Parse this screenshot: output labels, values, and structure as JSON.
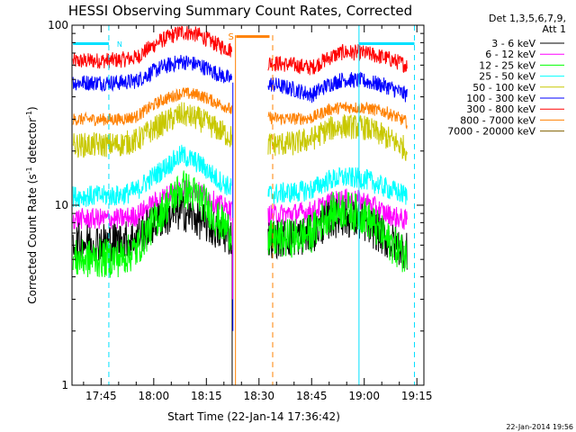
{
  "chart_data": {
    "type": "line",
    "title": "HESSI Observing Summary Count Rates, Corrected",
    "xlabel": "Start Time (22-Jan-14 17:36:42)",
    "ylabel_main": "Corrected Count Rate (s",
    "ylabel_sup1": "-1",
    "ylabel_mid": " detector",
    "ylabel_sup2": "-1",
    "ylabel_end": ")",
    "yscale": "log",
    "ylim": [
      1,
      100
    ],
    "xlim_minutes": [
      1056.7,
      1157.0
    ],
    "x_ticks": [
      {
        "t": 1065,
        "label": "17:45"
      },
      {
        "t": 1080,
        "label": "18:00"
      },
      {
        "t": 1095,
        "label": "18:15"
      },
      {
        "t": 1110,
        "label": "18:30"
      },
      {
        "t": 1125,
        "label": "18:45"
      },
      {
        "t": 1140,
        "label": "19:00"
      },
      {
        "t": 1155,
        "label": "19:15"
      }
    ],
    "y_ticks": [
      {
        "v": 1,
        "label": "1"
      },
      {
        "v": 10,
        "label": "10"
      },
      {
        "v": 100,
        "label": "100"
      }
    ],
    "legend_header": [
      "Det 1,3,5,6,7,9,",
      "Att 1"
    ],
    "legend_placement": "right",
    "series": [
      {
        "name": "3 - 6 keV",
        "color": "#000000",
        "values": [
          [
            1057,
            6.2
          ],
          [
            1070,
            6.3
          ],
          [
            1075,
            6.6
          ],
          [
            1082,
            8.4
          ],
          [
            1088,
            9.3
          ],
          [
            1093,
            8.3
          ],
          [
            1098,
            7.2
          ],
          [
            1101,
            6.8
          ],
          [
            1102.5,
            6.6
          ],
          [
            1112.5,
            6.5
          ],
          [
            1120,
            6.6
          ],
          [
            1125,
            6.9
          ],
          [
            1130,
            8.3
          ],
          [
            1134,
            8.6
          ],
          [
            1140,
            8.0
          ],
          [
            1146,
            6.5
          ],
          [
            1152,
            5.6
          ]
        ]
      },
      {
        "name": "6 - 12 keV",
        "color": "#ff00ff",
        "values": [
          [
            1057,
            8.4
          ],
          [
            1070,
            8.4
          ],
          [
            1075,
            8.7
          ],
          [
            1082,
            10.8
          ],
          [
            1088,
            12.5
          ],
          [
            1093,
            11.8
          ],
          [
            1098,
            10.2
          ],
          [
            1101,
            9.5
          ],
          [
            1102.5,
            9.2
          ],
          [
            1112.5,
            8.8
          ],
          [
            1120,
            9.0
          ],
          [
            1125,
            9.2
          ],
          [
            1130,
            10.3
          ],
          [
            1134,
            10.8
          ],
          [
            1140,
            10.5
          ],
          [
            1146,
            9.0
          ],
          [
            1152,
            8.2
          ]
        ]
      },
      {
        "name": "12 - 25 keV",
        "color": "#00ff00",
        "values": [
          [
            1057,
            5.0
          ],
          [
            1070,
            5.1
          ],
          [
            1075,
            5.6
          ],
          [
            1082,
            9.0
          ],
          [
            1088,
            12.5
          ],
          [
            1093,
            11.0
          ],
          [
            1098,
            8.3
          ],
          [
            1101,
            7.4
          ],
          [
            1102.5,
            7.0
          ],
          [
            1112.5,
            6.4
          ],
          [
            1120,
            6.6
          ],
          [
            1125,
            7.0
          ],
          [
            1130,
            9.0
          ],
          [
            1134,
            9.5
          ],
          [
            1140,
            8.8
          ],
          [
            1146,
            6.5
          ],
          [
            1152,
            5.2
          ]
        ]
      },
      {
        "name": "25 - 50 keV",
        "color": "#00ffff",
        "values": [
          [
            1057,
            11.2
          ],
          [
            1070,
            11.3
          ],
          [
            1075,
            12.0
          ],
          [
            1082,
            15.5
          ],
          [
            1088,
            19.0
          ],
          [
            1093,
            17.0
          ],
          [
            1098,
            14.0
          ],
          [
            1101,
            12.8
          ],
          [
            1102.5,
            12.2
          ],
          [
            1112.5,
            11.5
          ],
          [
            1120,
            11.8
          ],
          [
            1125,
            12.2
          ],
          [
            1130,
            13.8
          ],
          [
            1134,
            14.3
          ],
          [
            1140,
            14.0
          ],
          [
            1146,
            12.5
          ],
          [
            1152,
            11.3
          ]
        ]
      },
      {
        "name": "50 - 100 keV",
        "color": "#c8c800",
        "values": [
          [
            1057,
            21.5
          ],
          [
            1070,
            21.7
          ],
          [
            1075,
            22.8
          ],
          [
            1082,
            28.0
          ],
          [
            1088,
            32.0
          ],
          [
            1093,
            30.0
          ],
          [
            1098,
            26.5
          ],
          [
            1101,
            24.5
          ],
          [
            1102.5,
            23.5
          ],
          [
            1112.5,
            21.8
          ],
          [
            1120,
            22.0
          ],
          [
            1125,
            23.3
          ],
          [
            1130,
            26.5
          ],
          [
            1134,
            27.5
          ],
          [
            1140,
            27.0
          ],
          [
            1146,
            24.0
          ],
          [
            1152,
            20.5
          ]
        ]
      },
      {
        "name": "100 - 300 keV",
        "color": "#0000ff",
        "values": [
          [
            1057,
            48.0
          ],
          [
            1070,
            48.0
          ],
          [
            1075,
            49.0
          ],
          [
            1082,
            58.0
          ],
          [
            1088,
            63.0
          ],
          [
            1093,
            60.0
          ],
          [
            1098,
            54.0
          ],
          [
            1101,
            51.0
          ],
          [
            1102.5,
            49.0
          ],
          [
            1112.5,
            47.5
          ],
          [
            1120,
            44.0
          ],
          [
            1125,
            41.0
          ],
          [
            1130,
            47.0
          ],
          [
            1134,
            50.0
          ],
          [
            1140,
            49.0
          ],
          [
            1146,
            46.0
          ],
          [
            1152,
            41.0
          ]
        ]
      },
      {
        "name": "300 - 800 keV",
        "color": "#ff0000",
        "values": [
          [
            1057,
            63.0
          ],
          [
            1070,
            64.0
          ],
          [
            1075,
            66.0
          ],
          [
            1082,
            82.0
          ],
          [
            1088,
            92.0
          ],
          [
            1093,
            88.0
          ],
          [
            1098,
            78.0
          ],
          [
            1101,
            74.0
          ],
          [
            1102.5,
            72.0
          ],
          [
            1112.5,
            62.0
          ],
          [
            1120,
            60.0
          ],
          [
            1125,
            58.0
          ],
          [
            1130,
            66.0
          ],
          [
            1134,
            71.0
          ],
          [
            1140,
            70.0
          ],
          [
            1146,
            66.0
          ],
          [
            1152,
            60.0
          ]
        ]
      },
      {
        "name": "800 - 7000 keV",
        "color": "#ff8000",
        "values": [
          [
            1057,
            30.0
          ],
          [
            1070,
            30.0
          ],
          [
            1075,
            31.0
          ],
          [
            1082,
            38.0
          ],
          [
            1088,
            42.0
          ],
          [
            1093,
            41.0
          ],
          [
            1098,
            37.0
          ],
          [
            1101,
            35.0
          ],
          [
            1102.5,
            33.0
          ],
          [
            1112.5,
            30.5
          ],
          [
            1120,
            30.2
          ],
          [
            1125,
            30.5
          ],
          [
            1130,
            34.0
          ],
          [
            1134,
            35.0
          ],
          [
            1140,
            34.8
          ],
          [
            1146,
            33.0
          ],
          [
            1152,
            29.0
          ]
        ]
      },
      {
        "name": "7000 - 20000 keV",
        "color": "#806000",
        "values": []
      }
    ],
    "annotations": {
      "flag_N": "N",
      "flag_S": "S"
    }
  },
  "footer": {
    "timestamp": "22-Jan-2014 19:56"
  }
}
